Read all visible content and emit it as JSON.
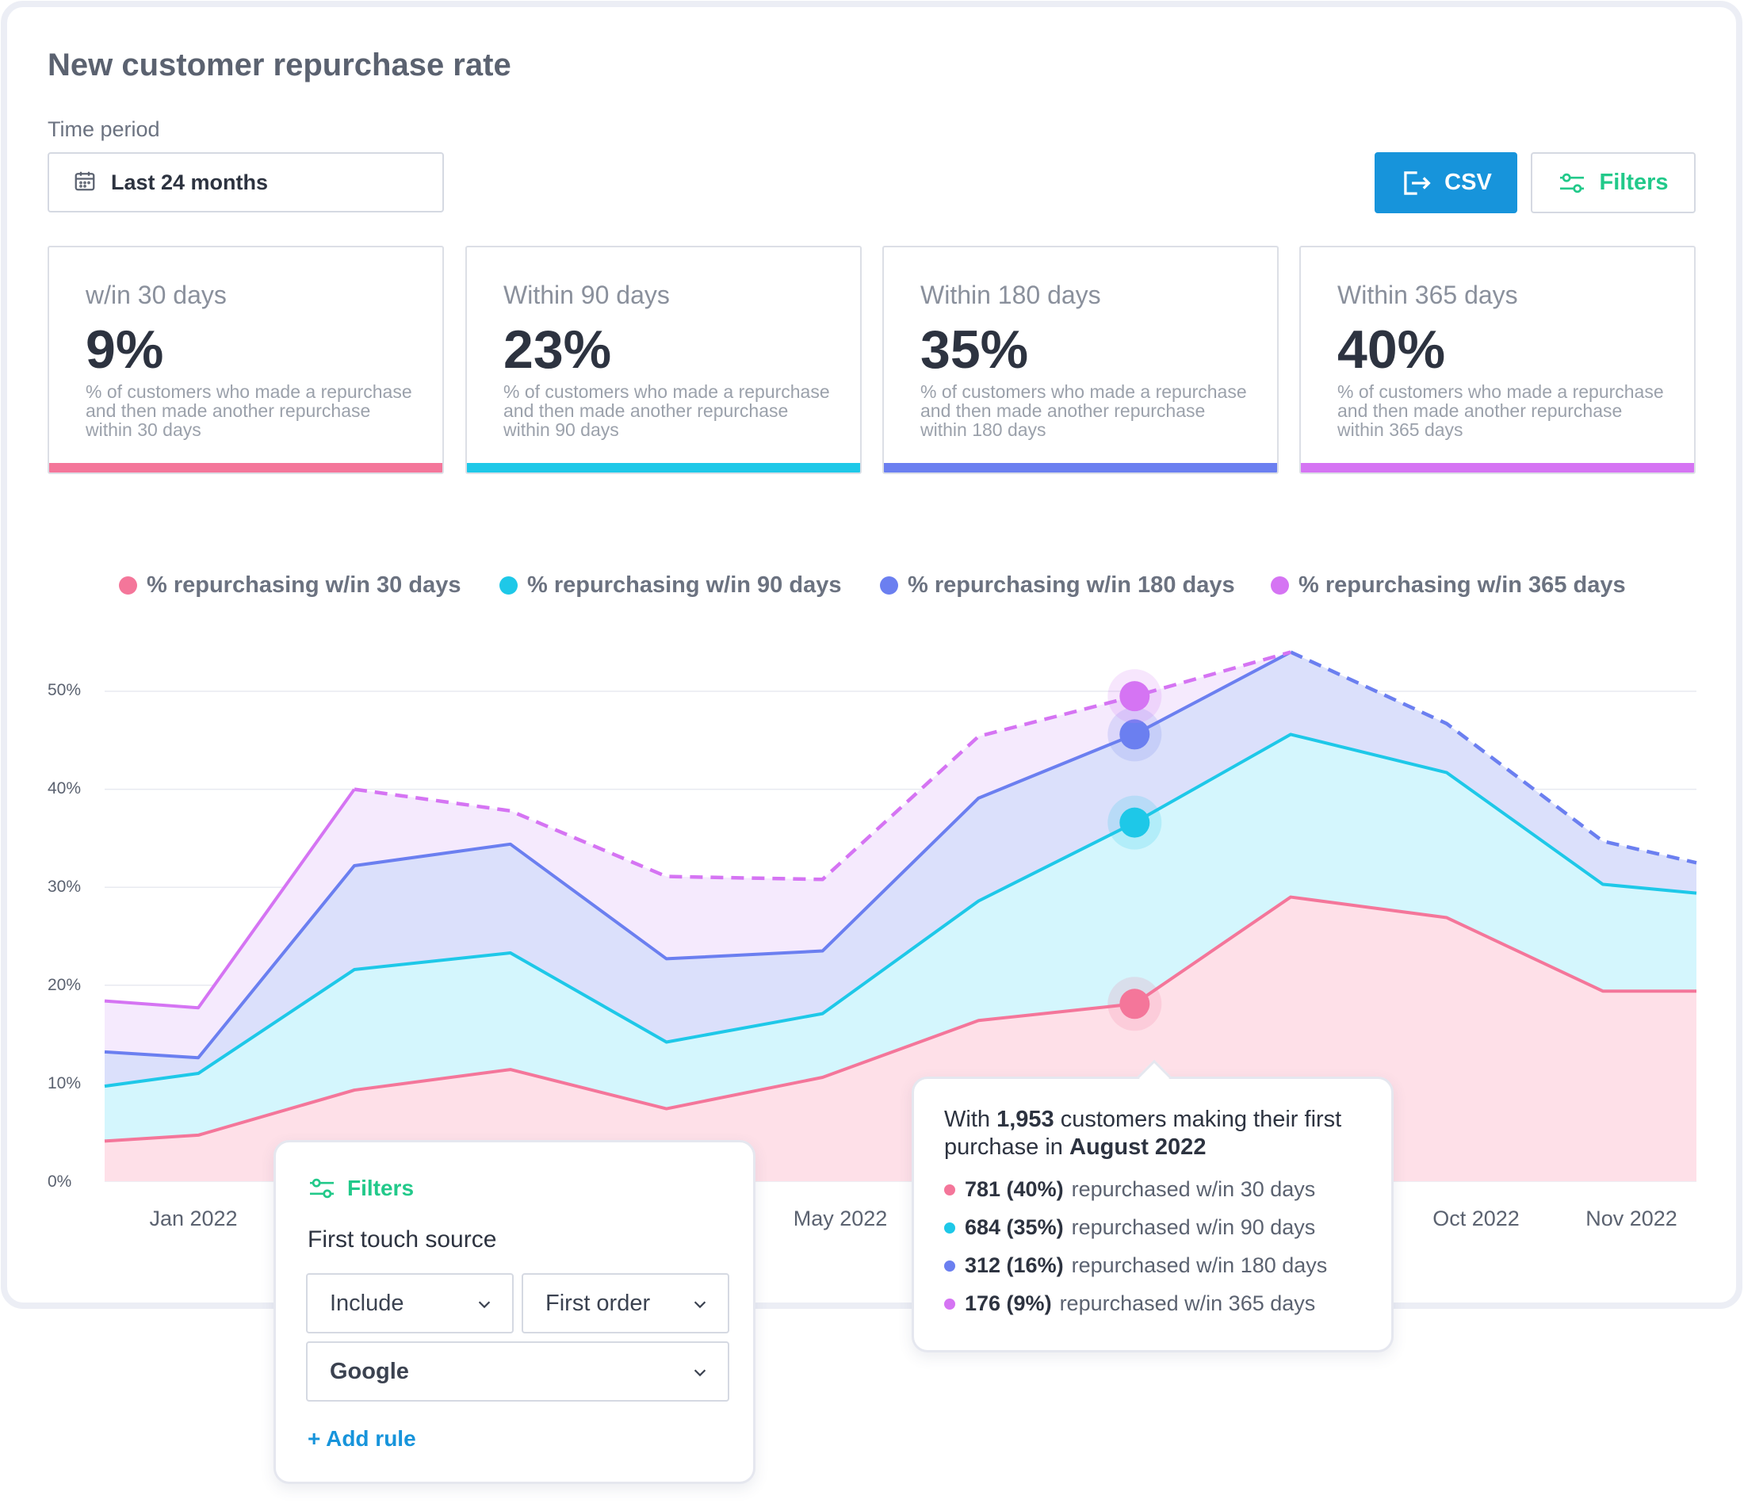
{
  "page": {
    "title": "New customer repurchase rate"
  },
  "time_period": {
    "label": "Time period",
    "value": "Last 24 months",
    "icon": "calendar-icon"
  },
  "toolbar": {
    "csv_label": "CSV",
    "filters_label": "Filters",
    "csv_icon": "export-icon",
    "filters_icon": "sliders-icon"
  },
  "colors": {
    "d30": "#f4769a",
    "d90": "#1ec8e8",
    "d180": "#6b7ff0",
    "d365": "#d574f3",
    "accent_blue": "#1794db",
    "accent_green": "#22c98a"
  },
  "stats": [
    {
      "label": "w/in 30 days",
      "value": "9%",
      "description": "% of customers who made a repurchase and then made another repurchase within 30 days"
    },
    {
      "label": "Within 90 days",
      "value": "23%",
      "description": "% of customers who made a repurchase and then made another repurchase within 90 days"
    },
    {
      "label": "Within 180 days",
      "value": "35%",
      "description": "% of customers who made a repurchase and then made another repurchase within 180 days"
    },
    {
      "label": "Within 365 days",
      "value": "40%",
      "description": "% of customers who made a repurchase and then made another repurchase within 365 days"
    }
  ],
  "legend": [
    "% repurchasing w/in 30 days",
    "% repurchasing w/in 90 days",
    "% repurchasing w/in 180 days",
    "% repurchasing w/in 365 days"
  ],
  "chart_data": {
    "type": "area",
    "title": "",
    "y_tick_labels": [
      "0%",
      "10%",
      "20%",
      "30%",
      "40%",
      "50%"
    ],
    "ylim": [
      0,
      50
    ],
    "x_visible_labels": [
      "Jan 2022",
      "May 2022",
      "Oct 2022",
      "Nov 2022"
    ],
    "x_points": 11,
    "series": [
      {
        "name": "% repurchasing w/in 30 days",
        "values": [
          4.1,
          4.7,
          9.3,
          11.4,
          7.4,
          10.6,
          16.4,
          18.1,
          29.0,
          26.9,
          19.4,
          19.4
        ]
      },
      {
        "name": "% repurchasing w/in 90 days",
        "values": [
          9.7,
          11.0,
          21.6,
          23.3,
          14.2,
          17.1,
          28.6,
          36.6,
          45.6,
          41.7,
          30.3,
          29.4
        ]
      },
      {
        "name": "% repurchasing w/in 180 days",
        "values": [
          13.2,
          12.6,
          32.2,
          34.4,
          22.7,
          23.5,
          39.1,
          45.6,
          54.0,
          46.7,
          34.7,
          32.5
        ]
      },
      {
        "name": "% repurchasing w/in 365 days",
        "values": [
          18.4,
          17.7,
          40.0,
          37.8,
          31.1,
          30.8,
          45.4,
          49.5,
          54.0,
          46.7,
          34.7,
          32.5
        ]
      }
    ],
    "highlight_index": 7,
    "x_index_positions": [
      0,
      0.6,
      1.6,
      2.6,
      3.6,
      4.6,
      5.6,
      6.6,
      7.6,
      8.6,
      9.6,
      10.2
    ]
  },
  "filters_popover": {
    "title": "Filters",
    "subtitle": "First touch source",
    "include_value": "Include",
    "order_value": "First order",
    "source_value": "Google",
    "add_rule": "+ Add rule"
  },
  "tooltip": {
    "head_prefix": "With ",
    "head_count": "1,953",
    "head_mid": " customers making their first purchase in ",
    "head_month": "August 2022",
    "rows": [
      {
        "value": "781 (40%)",
        "text": "repurchased w/in 30 days"
      },
      {
        "value": "684 (35%)",
        "text": "repurchased w/in 90 days"
      },
      {
        "value": "312 (16%)",
        "text": "repurchased w/in 180 days"
      },
      {
        "value": "176 (9%)",
        "text": "repurchased w/in 365 days"
      }
    ]
  }
}
